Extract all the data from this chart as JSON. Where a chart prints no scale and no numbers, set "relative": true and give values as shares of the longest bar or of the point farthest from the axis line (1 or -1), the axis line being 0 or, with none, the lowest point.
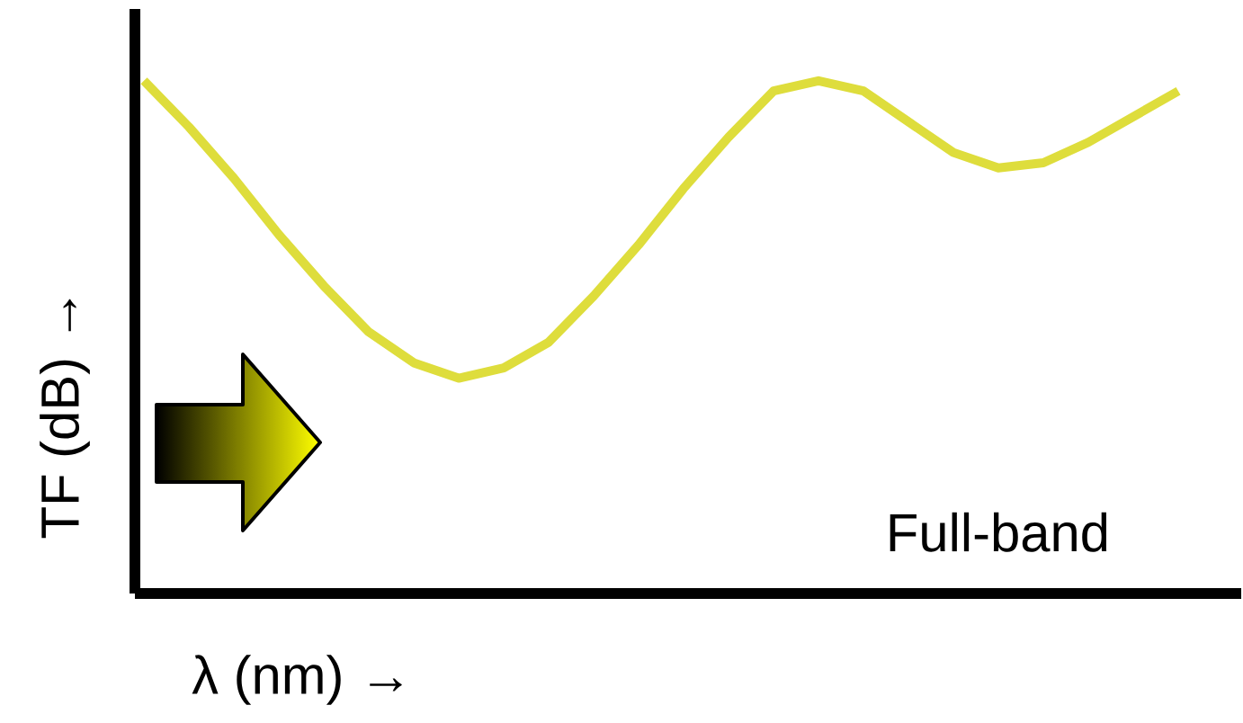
{
  "chart_data": {
    "type": "line",
    "relative": true,
    "xlabel": "λ (nm) →",
    "ylabel": "TF (dB) →",
    "annotations": [
      "Full-band"
    ],
    "color": "#dedd3c",
    "categories": [
      null,
      null,
      null,
      null,
      null,
      null,
      null,
      null,
      null,
      null,
      null,
      null,
      null,
      null,
      null,
      null,
      null,
      null,
      null,
      null,
      null,
      null,
      null,
      null
    ],
    "values": [
      1,
      0.91,
      0.81,
      0.7,
      0.6,
      0.51,
      0.45,
      0.42,
      0.44,
      0.49,
      0.58,
      0.68,
      0.79,
      0.89,
      0.98,
      1,
      0.98,
      0.92,
      0.86,
      0.83,
      0.84,
      0.88,
      0.93,
      0.98
    ]
  }
}
